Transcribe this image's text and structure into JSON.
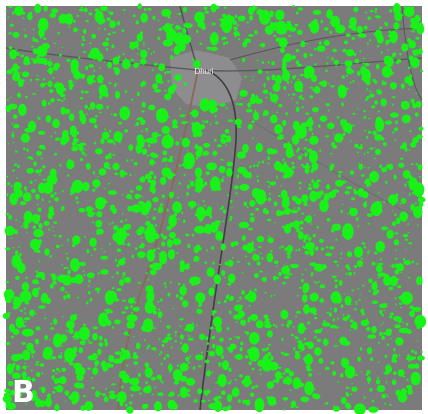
{
  "map": {
    "town_label": "Dhuri",
    "panel_label": "B"
  }
}
